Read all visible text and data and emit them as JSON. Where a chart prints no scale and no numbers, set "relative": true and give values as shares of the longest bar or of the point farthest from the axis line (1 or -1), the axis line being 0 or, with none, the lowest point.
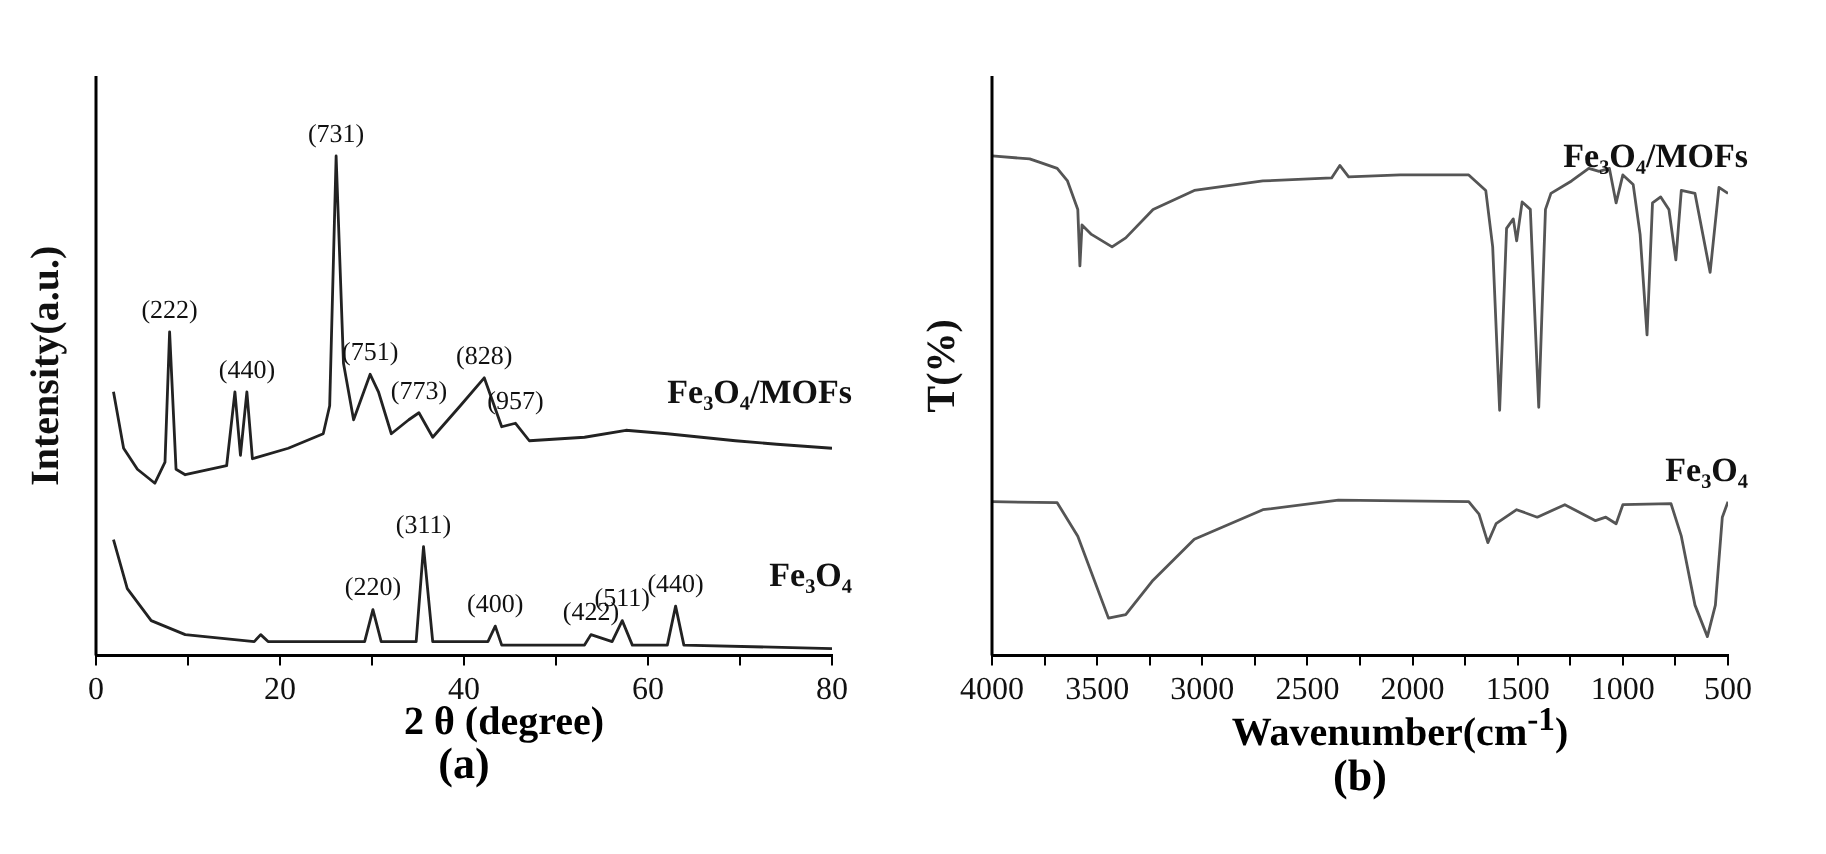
{
  "chart_data": [
    {
      "type": "line",
      "relative": true,
      "xlabel": "2 θ (degree)",
      "ylabel": "Intensity(a.u.)",
      "grid": false,
      "legend": false,
      "marker": "none",
      "line_style": "solid",
      "xlim": [
        0,
        80
      ],
      "xticks": [
        0,
        {
          "value": 10,
          "label": null
        },
        20,
        {
          "value": 30,
          "label": null
        },
        40,
        {
          "value": 50,
          "label": null
        },
        60,
        {
          "value": 70,
          "label": null
        },
        80
      ],
      "series": [
        {
          "name": "Fe₃O₄/MOFs",
          "color": "#222222",
          "x": [
            1.9,
            3,
            4.5,
            6.4,
            7.5,
            8.0,
            8.7,
            9.7,
            14.2,
            15.1,
            15.7,
            16.4,
            17,
            20.9,
            24.7,
            25.4,
            26.1,
            26.9,
            28,
            29.8,
            30.7,
            32.1,
            34,
            35.1,
            36.6,
            39.6,
            42.2,
            44.1,
            45.6,
            47.1,
            53.1,
            57.6,
            62.1,
            69.5,
            74,
            80
          ],
          "values": [
            0.528,
            0.415,
            0.373,
            0.345,
            0.387,
            0.648,
            0.373,
            0.362,
            0.38,
            0.528,
            0.401,
            0.528,
            0.394,
            0.415,
            0.444,
            0.5,
            1,
            0.585,
            0.472,
            0.563,
            0.528,
            0.444,
            0.472,
            0.486,
            0.437,
            0.5,
            0.556,
            0.458,
            0.465,
            0.43,
            0.437,
            0.451,
            0.444,
            0.43,
            0.423,
            0.415
          ]
        },
        {
          "name": "Fe₃O₄",
          "color": "#222222",
          "x": [
            1.9,
            3.4,
            6,
            9.7,
            17.2,
            17.9,
            18.7,
            29.2,
            30.1,
            31,
            34.8,
            35.6,
            36.6,
            42.6,
            43.4,
            44.1,
            53.1,
            53.8,
            56.1,
            57.2,
            58.3,
            62.1,
            63,
            63.9,
            80
          ],
          "values": [
            0.232,
            0.134,
            0.07,
            0.042,
            0.028,
            0.042,
            0.028,
            0.028,
            0.092,
            0.028,
            0.028,
            0.218,
            0.028,
            0.028,
            0.059,
            0.021,
            0.021,
            0.042,
            0.028,
            0.07,
            0.021,
            0.021,
            0.099,
            0.021,
            0.014
          ]
        }
      ],
      "annotations": [
        {
          "text": "(731)",
          "x": 26.1,
          "y": 1
        },
        {
          "text": "(222)",
          "x": 8.0,
          "y": 0.648
        },
        {
          "text": "(440)",
          "x": 16.4,
          "y": 0.528
        },
        {
          "text": "(751)",
          "x": 29.8,
          "y": 0.563
        },
        {
          "text": "(828)",
          "x": 42.2,
          "y": 0.556
        },
        {
          "text": "(773)",
          "x": 35.1,
          "y": 0.486
        },
        {
          "text": "(957)",
          "x": 45.6,
          "y": 0.465
        },
        {
          "text": "(311)",
          "x": 35.6,
          "y": 0.218
        },
        {
          "text": "(220)",
          "x": 30.1,
          "y": 0.092
        },
        {
          "text": "(400)",
          "x": 43.4,
          "y": 0.059
        },
        {
          "text": "(422)",
          "x": 53.8,
          "y": 0.042
        },
        {
          "text": "(511)",
          "x": 57.2,
          "y": 0.07
        },
        {
          "text": "(440)",
          "x": 63,
          "y": 0.099
        },
        "(a)"
      ]
    },
    {
      "type": "line",
      "relative": true,
      "xlabel": "Wavenumber(cm$^{-1}$)",
      "ylabel": "T(%)",
      "grid": false,
      "legend": false,
      "marker": "none",
      "line_style": "solid",
      "xlim": [
        4000,
        500
      ],
      "xticks": [
        4000,
        {
          "value": 3750,
          "label": null
        },
        3500,
        {
          "value": 3250,
          "label": null
        },
        3000,
        {
          "value": 2750,
          "label": null
        },
        2500,
        {
          "value": 2250,
          "label": null
        },
        2000,
        {
          "value": 1750,
          "label": null
        },
        1500,
        {
          "value": 1250,
          "label": null
        },
        1000,
        {
          "value": 750,
          "label": null
        },
        500
      ],
      "series": [
        {
          "name": "Fe₃O₄/MOFs",
          "color": "#555555",
          "x": [
            4000,
            3821,
            3772,
            3690,
            3641,
            3592,
            3582,
            3572,
            3527,
            3429,
            3364,
            3234,
            3038,
            2712,
            2385,
            2346,
            2304,
            2059,
            1733,
            1652,
            1619,
            1586,
            1553,
            1521,
            1505,
            1479,
            1440,
            1400,
            1368,
            1342,
            1244,
            1162,
            1113,
            1064,
            1032,
            1000,
            951,
            918,
            885,
            859,
            820,
            781,
            748,
            722,
            657,
            585,
            543,
            500
          ],
          "values": [
            1,
            0.994,
            0.987,
            0.975,
            0.95,
            0.893,
            0.78,
            0.862,
            0.843,
            0.818,
            0.836,
            0.893,
            0.931,
            0.95,
            0.956,
            0.981,
            0.958,
            0.962,
            0.962,
            0.931,
            0.818,
            0.491,
            0.855,
            0.874,
            0.83,
            0.908,
            0.893,
            0.497,
            0.893,
            0.925,
            0.95,
            0.975,
            0.969,
            0.975,
            0.906,
            0.962,
            0.943,
            0.843,
            0.642,
            0.906,
            0.918,
            0.893,
            0.792,
            0.931,
            0.925,
            0.767,
            0.937,
            0.925
          ]
        },
        {
          "name": "Fe₃O₄",
          "color": "#555555",
          "x": [
            4000,
            3690,
            3592,
            3446,
            3364,
            3234,
            3038,
            2712,
            2353,
            1733,
            1684,
            1642,
            1603,
            1505,
            1407,
            1276,
            1130,
            1081,
            1032,
            1000,
            771,
            722,
            657,
            598,
            560,
            527,
            500
          ],
          "values": [
            0.308,
            0.306,
            0.239,
            0.075,
            0.082,
            0.151,
            0.233,
            0.292,
            0.311,
            0.308,
            0.283,
            0.226,
            0.264,
            0.292,
            0.277,
            0.302,
            0.27,
            0.277,
            0.264,
            0.302,
            0.304,
            0.239,
            0.101,
            0.038,
            0.101,
            0.277,
            0.308
          ]
        }
      ],
      "annotations": [
        "(b)"
      ]
    }
  ]
}
